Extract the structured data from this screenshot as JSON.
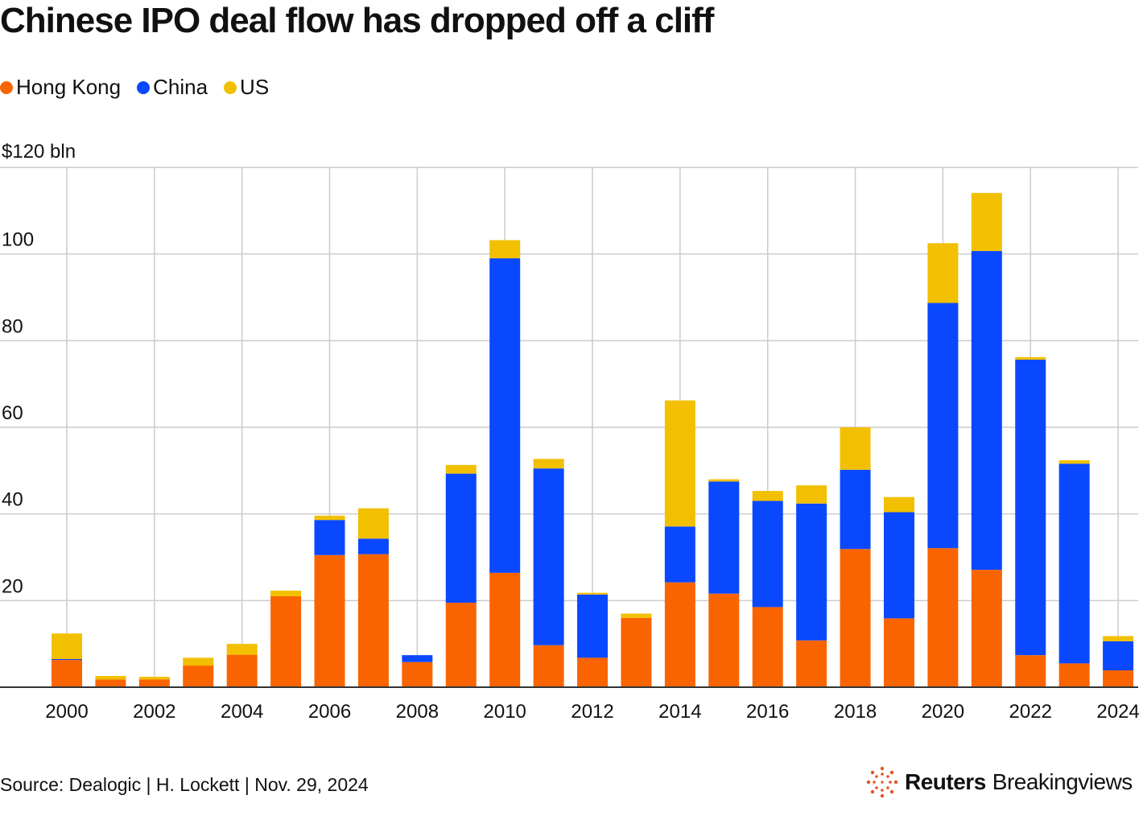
{
  "title": "Chinese IPO deal flow has dropped off a cliff",
  "legend": [
    {
      "label": "Hong Kong",
      "color": "#fa6400"
    },
    {
      "label": "China",
      "color": "#0a48ff"
    },
    {
      "label": "US",
      "color": "#f2c000"
    }
  ],
  "chart_data": {
    "type": "bar",
    "stacked": true,
    "title": "Chinese IPO deal flow has dropped off a cliff",
    "y_unit_label": "$120 bln",
    "ylim": [
      0,
      120
    ],
    "y_ticks": [
      20,
      40,
      60,
      80,
      100
    ],
    "x_tick_labels": [
      "2000",
      "2002",
      "2004",
      "2006",
      "2008",
      "2010",
      "2012",
      "2014",
      "2016",
      "2018",
      "2020",
      "2022",
      "2024"
    ],
    "categories": [
      2000,
      2001,
      2002,
      2003,
      2004,
      2005,
      2006,
      2007,
      2008,
      2009,
      2010,
      2011,
      2012,
      2013,
      2014,
      2015,
      2016,
      2017,
      2018,
      2019,
      2020,
      2021,
      2022,
      2023,
      2024
    ],
    "series": [
      {
        "name": "Hong Kong",
        "color": "#fa6400",
        "values": [
          6.3,
          1.8,
          1.8,
          5.0,
          7.5,
          21.0,
          30.5,
          30.7,
          5.8,
          19.5,
          26.4,
          9.7,
          6.8,
          16.0,
          24.2,
          21.6,
          18.5,
          10.8,
          31.9,
          15.9,
          32.1,
          27.1,
          7.4,
          5.5,
          3.9
        ]
      },
      {
        "name": "China",
        "color": "#0a48ff",
        "values": [
          0.2,
          0.0,
          0.0,
          0.0,
          0.0,
          0.0,
          8.1,
          3.6,
          1.6,
          29.8,
          72.6,
          40.8,
          14.6,
          0.0,
          12.9,
          25.9,
          24.5,
          31.6,
          18.3,
          24.5,
          56.6,
          73.6,
          68.2,
          46.1,
          6.7
        ]
      },
      {
        "name": "US",
        "color": "#f2c000",
        "values": [
          5.9,
          0.8,
          0.6,
          1.8,
          2.5,
          1.3,
          1.0,
          7.0,
          0.0,
          2.0,
          4.2,
          2.2,
          0.4,
          1.0,
          29.1,
          0.5,
          2.3,
          4.2,
          9.8,
          3.5,
          13.8,
          13.4,
          0.6,
          0.8,
          1.2
        ]
      }
    ]
  },
  "footer": {
    "source": "Source: Dealogic | H. Lockett | Nov. 29, 2024",
    "logo_bold": "Reuters",
    "logo_light": "Breakingviews"
  }
}
